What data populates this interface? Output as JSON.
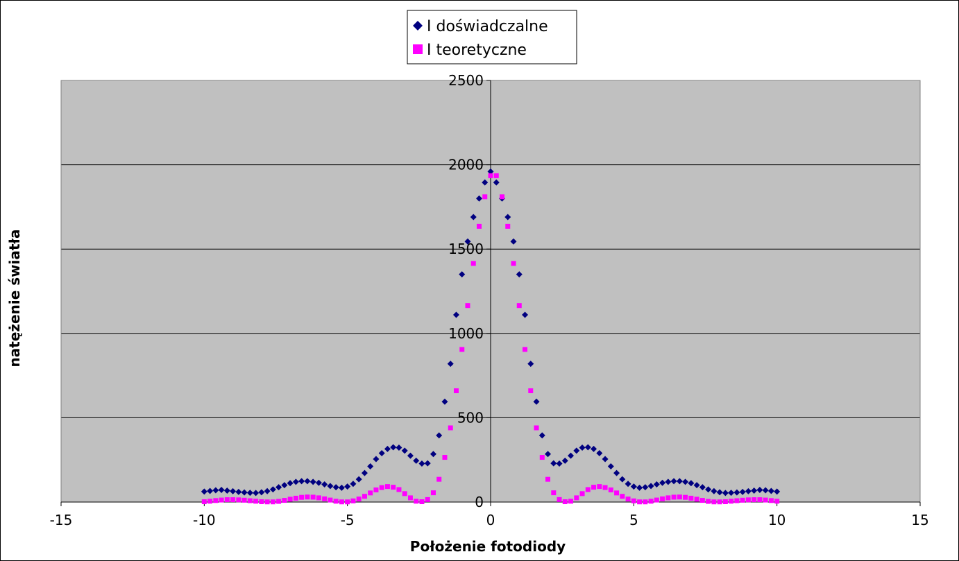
{
  "chart_data": {
    "type": "scatter",
    "xlabel": "Położenie fotodiody",
    "ylabel": "natężenie światła",
    "xlim": [
      -15,
      15
    ],
    "ylim": [
      0,
      2500
    ],
    "x_ticks": [
      -15,
      -10,
      -5,
      0,
      5,
      10,
      15
    ],
    "y_ticks": [
      0,
      500,
      1000,
      1500,
      2000,
      2500
    ],
    "grid": "horizontal",
    "legend_position": "top-center",
    "plot_background": "#c0c0c0",
    "series": [
      {
        "name": "I doświadczalne",
        "marker": "diamond",
        "color": "#000080",
        "points": [
          [
            -10.0,
            62
          ],
          [
            -9.8,
            66
          ],
          [
            -9.6,
            70
          ],
          [
            -9.4,
            72
          ],
          [
            -9.2,
            68
          ],
          [
            -9.0,
            64
          ],
          [
            -8.8,
            60
          ],
          [
            -8.6,
            57
          ],
          [
            -8.4,
            55
          ],
          [
            -8.2,
            54
          ],
          [
            -8.0,
            58
          ],
          [
            -7.8,
            65
          ],
          [
            -7.6,
            75
          ],
          [
            -7.4,
            88
          ],
          [
            -7.2,
            100
          ],
          [
            -7.0,
            112
          ],
          [
            -6.8,
            120
          ],
          [
            -6.6,
            124
          ],
          [
            -6.4,
            124
          ],
          [
            -6.2,
            120
          ],
          [
            -6.0,
            114
          ],
          [
            -5.8,
            105
          ],
          [
            -5.6,
            95
          ],
          [
            -5.4,
            88
          ],
          [
            -5.2,
            85
          ],
          [
            -5.0,
            92
          ],
          [
            -4.8,
            108
          ],
          [
            -4.6,
            135
          ],
          [
            -4.4,
            172
          ],
          [
            -4.2,
            212
          ],
          [
            -4.0,
            255
          ],
          [
            -3.8,
            290
          ],
          [
            -3.6,
            315
          ],
          [
            -3.4,
            325
          ],
          [
            -3.2,
            323
          ],
          [
            -3.0,
            305
          ],
          [
            -2.8,
            275
          ],
          [
            -2.6,
            245
          ],
          [
            -2.4,
            228
          ],
          [
            -2.2,
            230
          ],
          [
            -2.0,
            285
          ],
          [
            -1.8,
            395
          ],
          [
            -1.6,
            595
          ],
          [
            -1.4,
            820
          ],
          [
            -1.2,
            1110
          ],
          [
            -1.0,
            1350
          ],
          [
            -0.8,
            1545
          ],
          [
            -0.6,
            1690
          ],
          [
            -0.4,
            1800
          ],
          [
            -0.2,
            1895
          ],
          [
            0.0,
            1960
          ],
          [
            0.2,
            1895
          ],
          [
            0.4,
            1800
          ],
          [
            0.6,
            1690
          ],
          [
            0.8,
            1545
          ],
          [
            1.0,
            1350
          ],
          [
            1.2,
            1110
          ],
          [
            1.4,
            820
          ],
          [
            1.6,
            595
          ],
          [
            1.8,
            395
          ],
          [
            2.0,
            285
          ],
          [
            2.2,
            230
          ],
          [
            2.4,
            228
          ],
          [
            2.6,
            245
          ],
          [
            2.8,
            275
          ],
          [
            3.0,
            305
          ],
          [
            3.2,
            323
          ],
          [
            3.4,
            325
          ],
          [
            3.6,
            315
          ],
          [
            3.8,
            290
          ],
          [
            4.0,
            255
          ],
          [
            4.2,
            212
          ],
          [
            4.4,
            172
          ],
          [
            4.6,
            135
          ],
          [
            4.8,
            108
          ],
          [
            5.0,
            92
          ],
          [
            5.2,
            85
          ],
          [
            5.4,
            88
          ],
          [
            5.6,
            95
          ],
          [
            5.8,
            105
          ],
          [
            6.0,
            114
          ],
          [
            6.2,
            120
          ],
          [
            6.4,
            124
          ],
          [
            6.6,
            124
          ],
          [
            6.8,
            120
          ],
          [
            7.0,
            112
          ],
          [
            7.2,
            100
          ],
          [
            7.4,
            88
          ],
          [
            7.6,
            75
          ],
          [
            7.8,
            65
          ],
          [
            8.0,
            58
          ],
          [
            8.2,
            54
          ],
          [
            8.4,
            55
          ],
          [
            8.6,
            57
          ],
          [
            8.8,
            60
          ],
          [
            9.0,
            64
          ],
          [
            9.2,
            68
          ],
          [
            9.4,
            72
          ],
          [
            9.6,
            70
          ],
          [
            9.8,
            66
          ],
          [
            10.0,
            62
          ]
        ]
      },
      {
        "name": "I teoretyczne",
        "marker": "square",
        "color": "#ff00ff",
        "points": [
          [
            -10.0,
            2
          ],
          [
            -9.8,
            5
          ],
          [
            -9.6,
            9
          ],
          [
            -9.4,
            12
          ],
          [
            -9.2,
            14
          ],
          [
            -9.0,
            14
          ],
          [
            -8.8,
            13
          ],
          [
            -8.6,
            11
          ],
          [
            -8.4,
            8
          ],
          [
            -8.2,
            5
          ],
          [
            -8.0,
            2
          ],
          [
            -7.8,
            1
          ],
          [
            -7.6,
            1
          ],
          [
            -7.4,
            4
          ],
          [
            -7.2,
            10
          ],
          [
            -7.0,
            17
          ],
          [
            -6.8,
            23
          ],
          [
            -6.6,
            28
          ],
          [
            -6.4,
            30
          ],
          [
            -6.2,
            29
          ],
          [
            -6.0,
            25
          ],
          [
            -5.8,
            19
          ],
          [
            -5.6,
            12
          ],
          [
            -5.4,
            5
          ],
          [
            -5.2,
            1
          ],
          [
            -5.0,
            1
          ],
          [
            -4.8,
            7
          ],
          [
            -4.6,
            18
          ],
          [
            -4.4,
            34
          ],
          [
            -4.2,
            54
          ],
          [
            -4.0,
            72
          ],
          [
            -3.8,
            86
          ],
          [
            -3.6,
            92
          ],
          [
            -3.4,
            88
          ],
          [
            -3.2,
            74
          ],
          [
            -3.0,
            50
          ],
          [
            -2.8,
            25
          ],
          [
            -2.6,
            5
          ],
          [
            -2.4,
            2
          ],
          [
            -2.2,
            15
          ],
          [
            -2.0,
            55
          ],
          [
            -1.8,
            135
          ],
          [
            -1.6,
            265
          ],
          [
            -1.4,
            440
          ],
          [
            -1.2,
            660
          ],
          [
            -1.0,
            905
          ],
          [
            -0.8,
            1165
          ],
          [
            -0.6,
            1415
          ],
          [
            -0.4,
            1635
          ],
          [
            -0.2,
            1810
          ],
          [
            0.0,
            1935
          ],
          [
            0.2,
            1935
          ],
          [
            0.4,
            1810
          ],
          [
            0.6,
            1635
          ],
          [
            0.8,
            1415
          ],
          [
            1.0,
            1165
          ],
          [
            1.2,
            905
          ],
          [
            1.4,
            660
          ],
          [
            1.6,
            440
          ],
          [
            1.8,
            265
          ],
          [
            2.0,
            135
          ],
          [
            2.2,
            55
          ],
          [
            2.4,
            15
          ],
          [
            2.6,
            2
          ],
          [
            2.8,
            5
          ],
          [
            3.0,
            25
          ],
          [
            3.2,
            50
          ],
          [
            3.4,
            74
          ],
          [
            3.6,
            88
          ],
          [
            3.8,
            92
          ],
          [
            4.0,
            86
          ],
          [
            4.2,
            72
          ],
          [
            4.4,
            54
          ],
          [
            4.6,
            34
          ],
          [
            4.8,
            18
          ],
          [
            5.0,
            7
          ],
          [
            5.2,
            1
          ],
          [
            5.4,
            1
          ],
          [
            5.6,
            5
          ],
          [
            5.8,
            12
          ],
          [
            6.0,
            19
          ],
          [
            6.2,
            25
          ],
          [
            6.4,
            29
          ],
          [
            6.6,
            30
          ],
          [
            6.8,
            28
          ],
          [
            7.0,
            23
          ],
          [
            7.2,
            17
          ],
          [
            7.4,
            10
          ],
          [
            7.6,
            4
          ],
          [
            7.8,
            1
          ],
          [
            8.0,
            1
          ],
          [
            8.2,
            2
          ],
          [
            8.4,
            5
          ],
          [
            8.6,
            8
          ],
          [
            8.8,
            11
          ],
          [
            9.0,
            13
          ],
          [
            9.2,
            14
          ],
          [
            9.4,
            14
          ],
          [
            9.6,
            12
          ],
          [
            9.8,
            9
          ],
          [
            10.0,
            5
          ]
        ]
      }
    ]
  }
}
